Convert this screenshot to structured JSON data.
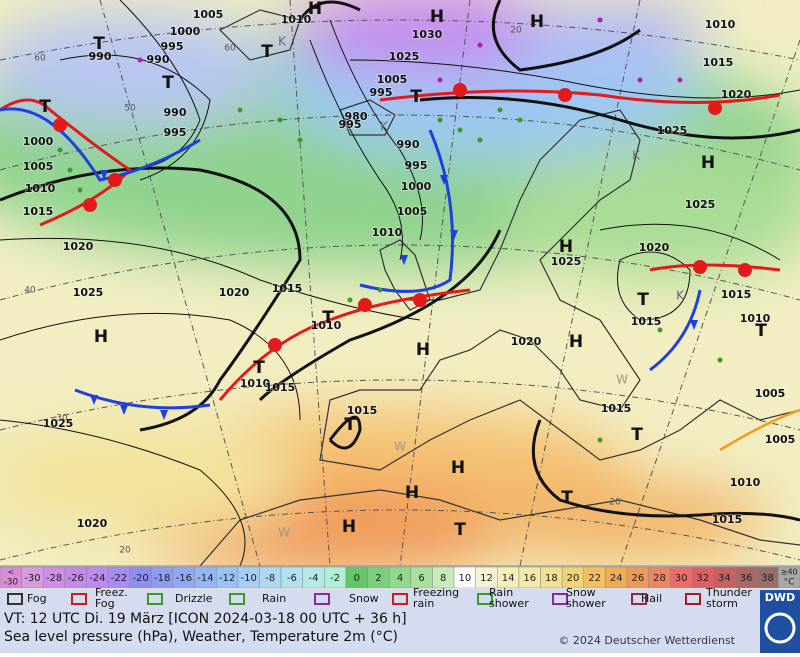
{
  "map": {
    "pressure_labels": [
      "1005",
      "1010",
      "1030",
      "1010",
      "1015",
      "1020",
      "1000",
      "995",
      "990",
      "990",
      "1025",
      "1005",
      "995",
      "990",
      "995",
      "980",
      "995",
      "1025",
      "1000",
      "1005",
      "1010",
      "1015",
      "990",
      "995",
      "1000",
      "1005",
      "1010",
      "1020",
      "1025",
      "1020",
      "1025",
      "1020",
      "1015",
      "1025",
      "1015",
      "1010",
      "1015",
      "1010",
      "1020",
      "1010",
      "1015",
      "1015",
      "1015",
      "1025",
      "1005",
      "1005",
      "1010",
      "1020",
      "1015"
    ],
    "systems": [
      "H",
      "H",
      "H",
      "T",
      "T",
      "T",
      "T",
      "T",
      "H",
      "H",
      "T",
      "H",
      "H",
      "H",
      "T",
      "T",
      "T",
      "T",
      "T",
      "H",
      "H",
      "T",
      "H",
      "T"
    ],
    "cold_pools": [
      "K",
      "K",
      "K",
      "K"
    ],
    "warm_marks": [
      "W",
      "W",
      "W"
    ],
    "lat_labels": [
      "60",
      "50",
      "40",
      "30",
      "20",
      "20",
      "60",
      "20"
    ]
  },
  "scale": {
    "cells": [
      {
        "prefix": "<",
        "label": "-30",
        "color": "#d98bd6"
      },
      {
        "label": "-30",
        "color": "#d59bdf"
      },
      {
        "label": "-28",
        "color": "#cf8ee6"
      },
      {
        "label": "-26",
        "color": "#c788ec"
      },
      {
        "label": "-24",
        "color": "#be8af0"
      },
      {
        "label": "-22",
        "color": "#a88cf2"
      },
      {
        "label": "-20",
        "color": "#8f8df0"
      },
      {
        "label": "-18",
        "color": "#8f9cf2"
      },
      {
        "label": "-16",
        "color": "#8fa9f4"
      },
      {
        "label": "-14",
        "color": "#93b6f5"
      },
      {
        "label": "-12",
        "color": "#9ac2f6"
      },
      {
        "label": "-10",
        "color": "#a5cdf6"
      },
      {
        "label": "-8",
        "color": "#add8f3"
      },
      {
        "label": "-6",
        "color": "#b3e2ef"
      },
      {
        "label": "-4",
        "color": "#b5e9e4"
      },
      {
        "label": "-2",
        "color": "#b0eed5"
      },
      {
        "label": "0",
        "color": "#62c766"
      },
      {
        "label": "2",
        "color": "#78d07a"
      },
      {
        "label": "4",
        "color": "#90d98b"
      },
      {
        "label": "6",
        "color": "#a9e09d"
      },
      {
        "label": "8",
        "color": "#c7ecb8"
      },
      {
        "label": "10",
        "color": "#ffffff"
      },
      {
        "label": "12",
        "color": "#f6f4d5"
      },
      {
        "label": "14",
        "color": "#f5efbb"
      },
      {
        "label": "16",
        "color": "#f4e8a6"
      },
      {
        "label": "18",
        "color": "#f3df8e"
      },
      {
        "label": "20",
        "color": "#f2d276"
      },
      {
        "label": "22",
        "color": "#f2c060"
      },
      {
        "label": "24",
        "color": "#f1ab55"
      },
      {
        "label": "26",
        "color": "#f0975a"
      },
      {
        "label": "28",
        "color": "#ee8462"
      },
      {
        "label": "30",
        "color": "#ea6e67"
      },
      {
        "label": "32",
        "color": "#de5f63"
      },
      {
        "label": "34",
        "color": "#c6615f"
      },
      {
        "label": "36",
        "color": "#ad6661"
      },
      {
        "label": "38",
        "color": "#9a6d68"
      },
      {
        "prefix": "≥40",
        "label": "°C",
        "color": "#a8a8a8"
      }
    ]
  },
  "legend": [
    {
      "lines": [
        "Fog"
      ],
      "color": "#333"
    },
    {
      "lines": [
        "Freez.",
        "Fog"
      ],
      "color": "#c0231f"
    },
    {
      "lines": [
        "Drizzle"
      ],
      "color": "#3a9a2a"
    },
    {
      "lines": [
        "Rain"
      ],
      "color": "#3a9a2a"
    },
    {
      "lines": [
        "Snow"
      ],
      "color": "#8a2a9a"
    },
    {
      "lines": [
        "Freezing",
        "rain"
      ],
      "color": "#c0231f"
    },
    {
      "lines": [
        "Rain",
        "shower"
      ],
      "color": "#3a9a2a"
    },
    {
      "lines": [
        "Snow",
        "shower"
      ],
      "color": "#8a2a9a"
    },
    {
      "lines": [
        "Hail"
      ],
      "color": "#8a2a4a"
    },
    {
      "lines": [
        "Thunder",
        "storm"
      ],
      "color": "#a02020"
    }
  ],
  "footer": {
    "valid_time": "VT: 12 UTC Di.  19 März [ICON 2024-03-18  00 UTC + 36 h]",
    "description": "Sea level pressure (hPa), Weather, Temperature 2m (°C)",
    "copyright": "© 2024 Deutscher Wetterdienst",
    "logo": "DWD"
  }
}
